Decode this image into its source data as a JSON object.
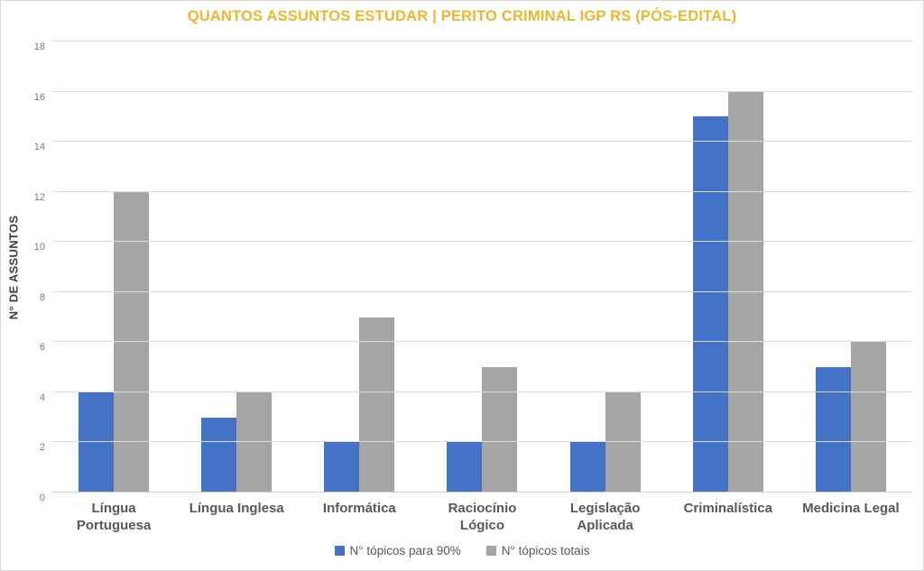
{
  "palette": {
    "title_color": "#EDB62E",
    "series1_color": "#4472C4",
    "series2_color": "#A5A5A5",
    "gridline_color": "#DCDCDC",
    "tick_text_color": "#7A7A7A",
    "category_text_color": "#595959",
    "y_title_color": "#404040"
  },
  "chart_data": {
    "type": "bar",
    "title": "QUANTOS ASSUNTOS ESTUDAR | PERITO CRIMINAL IGP RS (PÓS-EDITAL)",
    "categories": [
      "Língua Portuguesa",
      "Língua Inglesa",
      "Informática",
      "Raciocínio Lógico",
      "Legislação Aplicada",
      "Criminalística",
      "Medicina Legal"
    ],
    "series": [
      {
        "name": "N° tópicos para 90%",
        "color": "#4472C4",
        "values": [
          4,
          3,
          2,
          2,
          2,
          15,
          5
        ]
      },
      {
        "name": "N° tópicos totais",
        "color": "#A5A5A5",
        "values": [
          12,
          4,
          7,
          5,
          4,
          16,
          6
        ]
      }
    ],
    "xlabel": "",
    "ylabel": "N° DE ASSUNTOS",
    "ylim": [
      0,
      18
    ],
    "ytick_step": 2,
    "yticks": [
      0,
      2,
      4,
      6,
      8,
      10,
      12,
      14,
      16,
      18
    ],
    "grid": true,
    "legend_position": "bottom"
  }
}
